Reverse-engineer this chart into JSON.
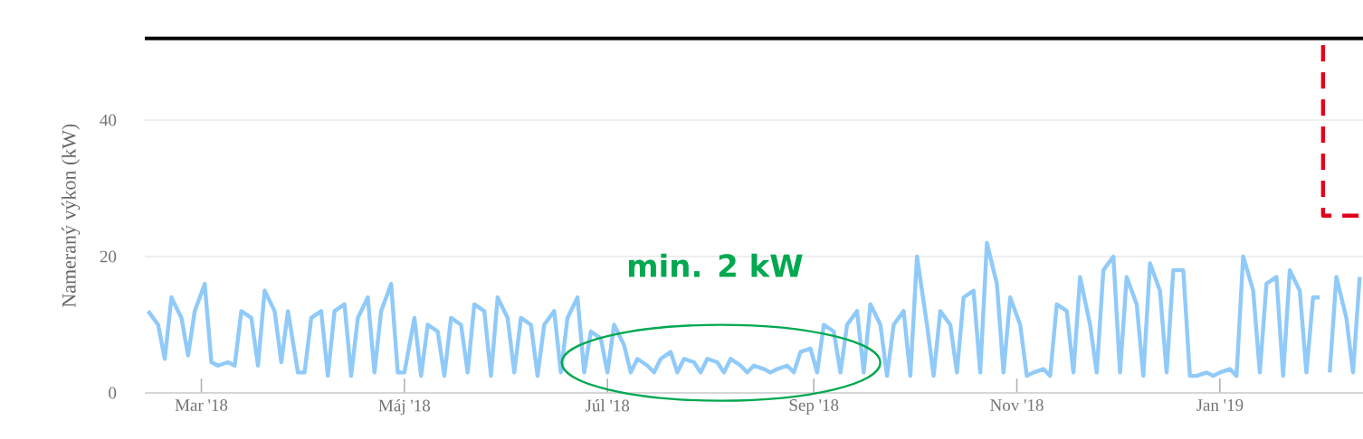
{
  "chart_data": {
    "type": "line",
    "ylabel": "Nameraný výkon (kW)",
    "x": [
      "2018-02-13",
      "2018-02-16",
      "2018-02-18",
      "2018-02-20",
      "2018-02-23",
      "2018-02-25",
      "2018-02-27",
      "2018-03-02",
      "2018-03-04",
      "2018-03-06",
      "2018-03-09",
      "2018-03-11",
      "2018-03-13",
      "2018-03-16",
      "2018-03-18",
      "2018-03-20",
      "2018-03-23",
      "2018-03-25",
      "2018-03-27",
      "2018-03-30",
      "2018-04-01",
      "2018-04-03",
      "2018-04-06",
      "2018-04-08",
      "2018-04-10",
      "2018-04-13",
      "2018-04-15",
      "2018-04-17",
      "2018-04-20",
      "2018-04-22",
      "2018-04-24",
      "2018-04-27",
      "2018-04-29",
      "2018-05-01",
      "2018-05-04",
      "2018-05-06",
      "2018-05-08",
      "2018-05-11",
      "2018-05-13",
      "2018-05-15",
      "2018-05-18",
      "2018-05-20",
      "2018-05-22",
      "2018-05-25",
      "2018-05-27",
      "2018-05-29",
      "2018-06-01",
      "2018-06-03",
      "2018-06-05",
      "2018-06-08",
      "2018-06-10",
      "2018-06-12",
      "2018-06-15",
      "2018-06-17",
      "2018-06-19",
      "2018-06-22",
      "2018-06-24",
      "2018-06-26",
      "2018-06-29",
      "2018-07-01",
      "2018-07-03",
      "2018-07-06",
      "2018-07-08",
      "2018-07-10",
      "2018-07-13",
      "2018-07-15",
      "2018-07-17",
      "2018-07-20",
      "2018-07-22",
      "2018-07-24",
      "2018-07-27",
      "2018-07-29",
      "2018-07-31",
      "2018-08-03",
      "2018-08-05",
      "2018-08-07",
      "2018-08-10",
      "2018-08-12",
      "2018-08-14",
      "2018-08-17",
      "2018-08-19",
      "2018-08-21",
      "2018-08-24",
      "2018-08-26",
      "2018-08-28",
      "2018-08-31",
      "2018-09-02",
      "2018-09-04",
      "2018-09-07",
      "2018-09-09",
      "2018-09-11",
      "2018-09-14",
      "2018-09-16",
      "2018-09-18",
      "2018-09-21",
      "2018-09-23",
      "2018-09-25",
      "2018-09-28",
      "2018-09-30",
      "2018-10-02",
      "2018-10-05",
      "2018-10-07",
      "2018-10-09",
      "2018-10-12",
      "2018-10-14",
      "2018-10-16",
      "2018-10-19",
      "2018-10-21",
      "2018-10-23",
      "2018-10-26",
      "2018-10-28",
      "2018-10-30",
      "2018-11-02",
      "2018-11-04",
      "2018-11-06",
      "2018-11-09",
      "2018-11-11",
      "2018-11-13",
      "2018-11-16",
      "2018-11-18",
      "2018-11-20",
      "2018-11-23",
      "2018-11-25",
      "2018-11-27",
      "2018-11-30",
      "2018-12-02",
      "2018-12-04",
      "2018-12-07",
      "2018-12-09",
      "2018-12-11",
      "2018-12-14",
      "2018-12-16",
      "2018-12-18",
      "2018-12-21",
      "2018-12-23",
      "2018-12-25",
      "2018-12-28",
      "2018-12-30",
      "2019-01-01",
      "2019-01-04",
      "2019-01-06",
      "2019-01-08",
      "2019-01-11",
      "2019-01-13",
      "2019-01-15",
      "2019-01-18",
      "2019-01-20",
      "2019-01-22",
      "2019-01-25",
      "2019-01-27",
      "2019-01-29",
      "2019-01-31",
      "2019-02-01",
      "2019-02-03",
      "2019-02-05",
      "2019-02-08",
      "2019-02-10",
      "2019-02-12"
    ],
    "series": [
      {
        "color": "#90caf9",
        "values": [
          12,
          10,
          5,
          14,
          11,
          5.5,
          12,
          16,
          4.5,
          4,
          4.5,
          4,
          12,
          11,
          4,
          15,
          12,
          4.5,
          12,
          3,
          3,
          11,
          12,
          2.5,
          12,
          13,
          2.5,
          11,
          14,
          3,
          12,
          16,
          3,
          3,
          11,
          2.5,
          10,
          9,
          2.5,
          11,
          10,
          3,
          13,
          12,
          2.5,
          14,
          11,
          3,
          11,
          10,
          2.5,
          10,
          12,
          3,
          11,
          14,
          3,
          9,
          8,
          3,
          10,
          7,
          3,
          5,
          4,
          3,
          5,
          6,
          3,
          5,
          4.5,
          3,
          5,
          4.5,
          3,
          5,
          4,
          3,
          4,
          3.5,
          3,
          3.5,
          4,
          3,
          6,
          6.5,
          3,
          10,
          9,
          3,
          10,
          12,
          3,
          13,
          10,
          2.5,
          10,
          12,
          2.5,
          20,
          10,
          2.5,
          12,
          10,
          3,
          14,
          15,
          3,
          22,
          16,
          3,
          14,
          10,
          2.5,
          3,
          3.5,
          2.5,
          13,
          12,
          3,
          17,
          10,
          3,
          18,
          20,
          3,
          17,
          13,
          2.5,
          19,
          15,
          3,
          18,
          18,
          2.5,
          2.5,
          3,
          2.5,
          3,
          3.5,
          2.5,
          20,
          15,
          3,
          16,
          17,
          2.5,
          18,
          15,
          3,
          14,
          14,
          null,
          3,
          17,
          11,
          3,
          17
        ]
      },
      {
        "type": "line",
        "color": "#e2001a",
        "line_style": "dashed",
        "x": [
          "2019-02-01",
          "2019-02-01",
          "2019-02-12"
        ],
        "values": [
          51,
          26,
          26
        ]
      }
    ],
    "xlim": [
      "2018-02-12",
      "2019-02-13"
    ],
    "xticks": [
      {
        "value": "2018-03-01",
        "label": "Mar '18"
      },
      {
        "value": "2018-05-01",
        "label": "Máj '18"
      },
      {
        "value": "2018-07-01",
        "label": "Júl '18"
      },
      {
        "value": "2018-09-01",
        "label": "Sep '18"
      },
      {
        "value": "2018-11-01",
        "label": "Nov '18"
      },
      {
        "value": "2019-01-01",
        "label": "Jan '19"
      }
    ],
    "ylim": [
      0,
      52
    ],
    "yticks": [
      0,
      20,
      40
    ],
    "grid": "y",
    "marker": "none",
    "line_style": "solid",
    "ref_lines": [
      {
        "axis": "y",
        "value": 52,
        "color": "#000000"
      }
    ],
    "annotations": [
      "min. 2 kW"
    ]
  }
}
